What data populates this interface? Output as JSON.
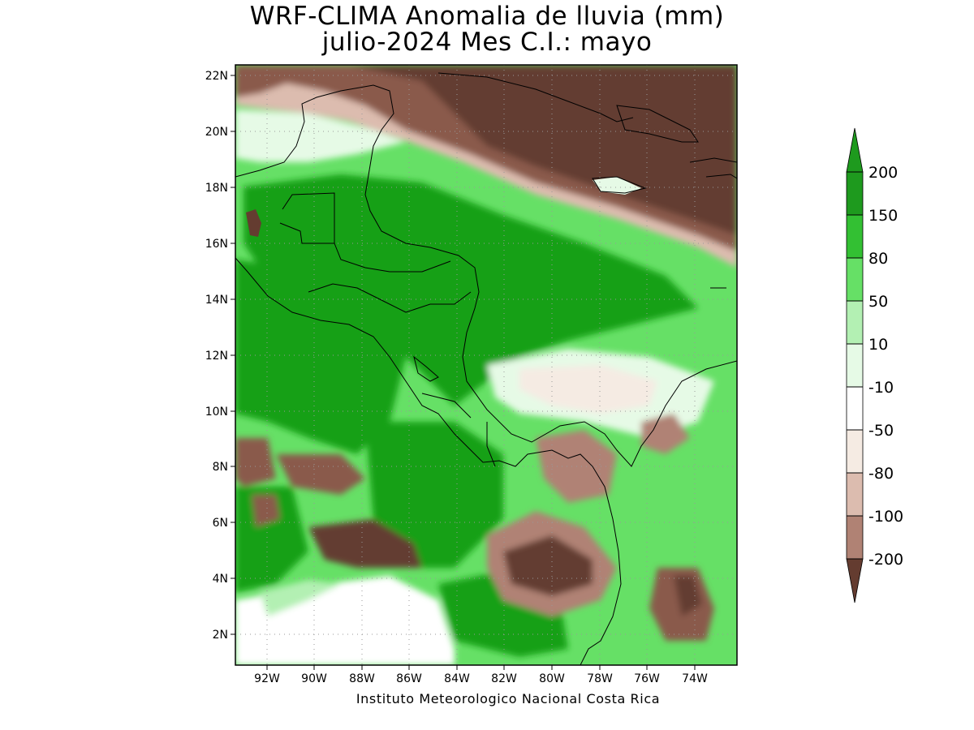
{
  "title": {
    "line1": "WRF-CLIMA Anomalia de lluvia (mm)",
    "line2": "julio-2024 Mes C.I.: mayo"
  },
  "footer": "Instituto Meteorologico Nacional Costa Rica",
  "axes": {
    "lat_labels": [
      "2N",
      "4N",
      "6N",
      "8N",
      "10N",
      "12N",
      "14N",
      "16N",
      "18N",
      "20N",
      "22N"
    ],
    "lon_labels": [
      "92W",
      "90W",
      "88W",
      "86W",
      "84W",
      "82W",
      "80W",
      "78W",
      "76W",
      "74W"
    ]
  },
  "map_extent": {
    "lon_min": -93.3,
    "lon_max": -72.5,
    "lat_min": 0.9,
    "lat_max": 22.4
  },
  "legend": {
    "labels": [
      "200",
      "150",
      "80",
      "50",
      "10",
      "-10",
      "-50",
      "-80",
      "-100",
      "-200"
    ],
    "colors": [
      "#1e9a1e",
      "#33c033",
      "#66e066",
      "#b3f0b3",
      "#e6fae6",
      "#ffffff",
      "#f5ebe3",
      "#dcbcaf",
      "#b08274",
      "#8a5a4c",
      "#6e4034"
    ],
    "top_color": "#1e9a1e",
    "bottom_color": "#643c30"
  },
  "palette": {
    "dark_brown": "#643c30",
    "brown": "#8a5a4c",
    "mid_brown": "#b08274",
    "light_brown": "#dcbcaf",
    "cream": "#f5ebe3",
    "pale_green": "#e6fae6",
    "light_green": "#b3f0b3",
    "green": "#66e066",
    "mid_green": "#33c033",
    "dark_green": "#17a017"
  }
}
